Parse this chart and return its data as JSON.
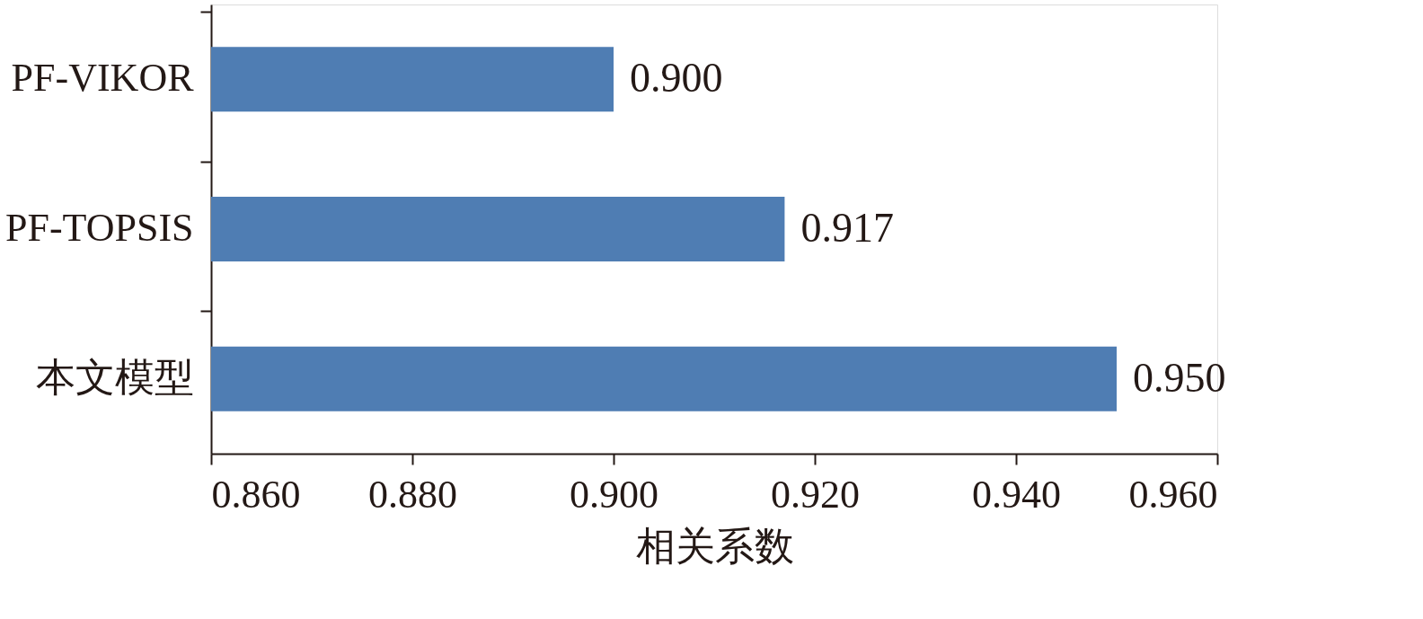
{
  "chart_data": {
    "type": "bar",
    "orientation": "horizontal",
    "xlabel": "相关系数",
    "categories": [
      "PF-VIKOR",
      "PF-TOPSIS",
      "本文模型"
    ],
    "values": [
      0.9,
      0.917,
      0.95
    ],
    "value_labels": [
      "0.900",
      "0.917",
      "0.950"
    ],
    "color": "#4f7db3",
    "xlim": [
      0.86,
      0.96
    ],
    "xticks": [
      {
        "value": 0.86,
        "label": "0.860"
      },
      {
        "value": 0.88,
        "label": "0.880"
      },
      {
        "value": 0.9,
        "label": "0.900"
      },
      {
        "value": 0.92,
        "label": "0.920"
      },
      {
        "value": 0.94,
        "label": "0.940"
      },
      {
        "value": 0.96,
        "label": "0.960"
      }
    ],
    "grid": false
  }
}
